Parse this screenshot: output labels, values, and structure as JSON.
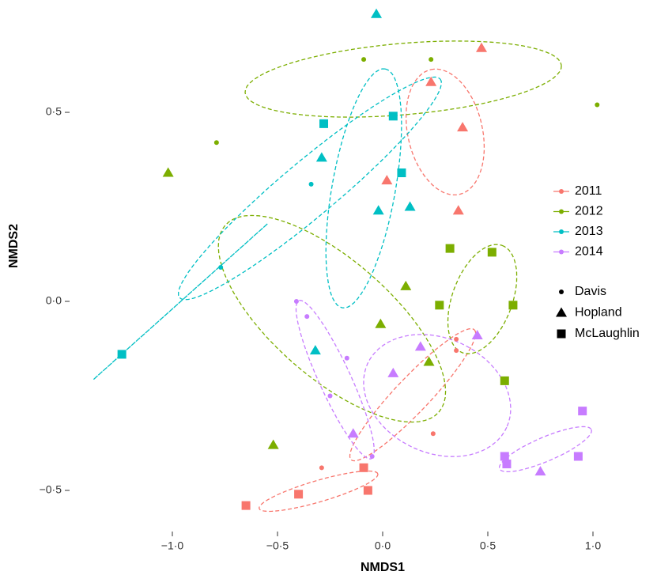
{
  "chart_data": {
    "type": "scatter",
    "x_label": "NMDS1",
    "y_label": "NMDS2",
    "xlim": [
      -1.45,
      1.05
    ],
    "ylim": [
      -0.6,
      0.78
    ],
    "xticks": [
      {
        "value": -1,
        "label": "−1·0"
      },
      {
        "value": -0.5,
        "label": "−0·5"
      },
      {
        "value": 0,
        "label": "0·0"
      },
      {
        "value": 0.5,
        "label": "0·5"
      },
      {
        "value": 1,
        "label": "1·0"
      }
    ],
    "yticks": [
      {
        "value": -0.5,
        "label": "−0·5"
      },
      {
        "value": 0,
        "label": "0·0"
      },
      {
        "value": 0.5,
        "label": "0·5"
      }
    ],
    "sites": [
      "Davis",
      "Hopland",
      "McLaughlin"
    ],
    "series": [
      {
        "name": "2011",
        "color": "#F8766D",
        "groups": [
          {
            "x": [
              0.35,
              0.35,
              0.24,
              -0.29
            ],
            "y": [
              -0.1,
              -0.13,
              -0.35,
              -0.44
            ]
          },
          {
            "x": [
              0.47,
              0.23,
              0.38,
              0.02,
              0.36
            ],
            "y": [
              0.67,
              0.58,
              0.46,
              0.32,
              0.24
            ]
          },
          {
            "x": [
              -0.65,
              -0.4,
              -0.09,
              -0.07
            ],
            "y": [
              -0.54,
              -0.51,
              -0.44,
              -0.5
            ]
          }
        ]
      },
      {
        "name": "2012",
        "color": "#7CAE00",
        "groups": [
          {
            "x": [
              -0.09,
              0.23,
              1.02,
              -0.79
            ],
            "y": [
              0.64,
              0.64,
              0.52,
              0.42
            ]
          },
          {
            "x": [
              -1.02,
              0.11,
              -0.01,
              0.22,
              -0.52
            ],
            "y": [
              0.34,
              0.04,
              -0.06,
              -0.16,
              -0.38
            ]
          },
          {
            "x": [
              0.32,
              0.52,
              0.27,
              0.62,
              0.58
            ],
            "y": [
              0.14,
              0.13,
              -0.01,
              -0.01,
              -0.21
            ]
          }
        ]
      },
      {
        "name": "2013",
        "color": "#00BFC4",
        "groups": [
          {
            "x": [
              -0.34,
              -0.77
            ],
            "y": [
              0.31,
              0.09
            ]
          },
          {
            "x": [
              -0.03,
              -0.29,
              -0.02,
              0.13,
              -0.32
            ],
            "y": [
              0.76,
              0.38,
              0.24,
              0.25,
              -0.13
            ]
          },
          {
            "x": [
              -0.28,
              0.05,
              0.09,
              -1.24
            ],
            "y": [
              0.47,
              0.49,
              0.34,
              -0.14
            ]
          }
        ]
      },
      {
        "name": "2014",
        "color": "#C77CFF",
        "groups": [
          {
            "x": [
              -0.41,
              -0.36,
              -0.17,
              -0.25,
              -0.05
            ],
            "y": [
              0.0,
              -0.04,
              -0.15,
              -0.25,
              -0.41
            ]
          },
          {
            "x": [
              0.18,
              0.45,
              0.05,
              -0.14,
              0.75
            ],
            "y": [
              -0.12,
              -0.09,
              -0.19,
              -0.35,
              -0.45
            ]
          },
          {
            "x": [
              0.95,
              0.58,
              0.59,
              0.93
            ],
            "y": [
              -0.29,
              -0.41,
              -0.43,
              -0.41
            ]
          }
        ]
      }
    ],
    "ellipses": [
      {
        "color": "#F8766D",
        "center": [
          0.297,
          0.448
        ],
        "axis1": [
          -0.068,
          0.165
        ],
        "axis2": [
          0.173,
          0.022
        ]
      },
      {
        "color": "#F8766D",
        "center": [
          0.143,
          -0.247
        ],
        "axis1": [
          0.293,
          0.172
        ],
        "axis2": [
          0.06,
          -0.031
        ]
      },
      {
        "color": "#F8766D",
        "center": [
          -0.305,
          -0.502
        ],
        "axis1": [
          0.282,
          0.046
        ],
        "axis2": [
          0.015,
          -0.027
        ]
      },
      {
        "color": "#7CAE00",
        "center": [
          0.098,
          0.588
        ],
        "axis1": [
          0.752,
          0.036
        ],
        "axis2": [
          0.014,
          -0.094
        ]
      },
      {
        "color": "#7CAE00",
        "center": [
          -0.241,
          -0.046
        ],
        "axis1": [
          0.508,
          -0.247
        ],
        "axis2": [
          0.184,
          0.117
        ]
      },
      {
        "color": "#7CAE00",
        "center": [
          0.474,
          0.006
        ],
        "axis1": [
          0.094,
          0.142
        ],
        "axis2": [
          0.134,
          -0.027
        ]
      },
      {
        "color": "#00BFC4",
        "center": [
          -0.09,
          0.299
        ],
        "axis1": [
          0.102,
          0.316
        ],
        "axis2": [
          0.148,
          -0.015
        ]
      },
      {
        "color": "#00BFC4",
        "center": [
          -0.346,
          0.299
        ],
        "axis1": [
          0.62,
          0.289
        ],
        "axis2": [
          0.083,
          -0.056
        ]
      },
      {
        "color": "#00BFC4",
        "center": [
          -0.962,
          -0.001
        ],
        "axis1": [
          0.414,
          0.206
        ],
        "axis2": [
          0,
          0
        ]
      },
      {
        "color": "#C77CFF",
        "center": [
          -0.226,
          -0.207
        ],
        "axis1": [
          0.173,
          -0.209
        ],
        "axis2": [
          0.068,
          0.018
        ]
      },
      {
        "color": "#C77CFF",
        "center": [
          0.259,
          -0.249
        ],
        "axis1": [
          0.331,
          -0.084
        ],
        "axis2": [
          -0.113,
          -0.138
        ]
      },
      {
        "color": "#C77CFF",
        "center": [
          0.774,
          -0.391
        ],
        "axis1": [
          0.218,
          0.052
        ],
        "axis2": [
          0.023,
          -0.029
        ]
      }
    ]
  }
}
